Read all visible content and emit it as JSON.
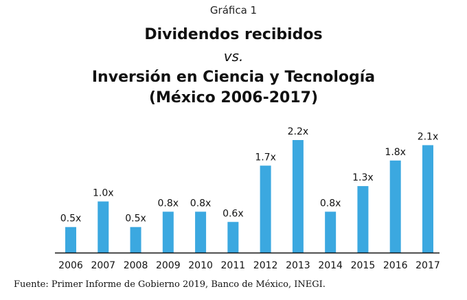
{
  "header": {
    "kicker": "Gráfica 1",
    "title_line1": "Dividendos recibidos",
    "title_line2": "vs.",
    "title_line3": "Inversión en Ciencia y Tecnología",
    "title_line4": "(México 2006-2017)"
  },
  "footer": {
    "source": "Fuente: Primer Informe de Gobierno 2019, Banco de México, INEGI."
  },
  "colors": {
    "bar": "#3ba8e0",
    "axis": "#111111",
    "text": "#111111"
  },
  "chart_data": {
    "type": "bar",
    "title": "Dividendos recibidos vs. Inversión en Ciencia y Tecnología (México 2006-2017)",
    "xlabel": "",
    "ylabel": "",
    "categories": [
      "2006",
      "2007",
      "2008",
      "2009",
      "2010",
      "2011",
      "2012",
      "2013",
      "2014",
      "2015",
      "2016",
      "2017"
    ],
    "values": [
      0.5,
      1.0,
      0.5,
      0.8,
      0.8,
      0.6,
      1.7,
      2.2,
      0.8,
      1.3,
      1.8,
      2.1
    ],
    "data_labels": [
      "0.5x",
      "1.0x",
      "0.5x",
      "0.8x",
      "0.8x",
      "0.6x",
      "1.7x",
      "2.2x",
      "0.8x",
      "1.3x",
      "1.8x",
      "2.1x"
    ],
    "ylim": [
      0,
      2.2
    ],
    "grid": false,
    "legend": "none"
  }
}
